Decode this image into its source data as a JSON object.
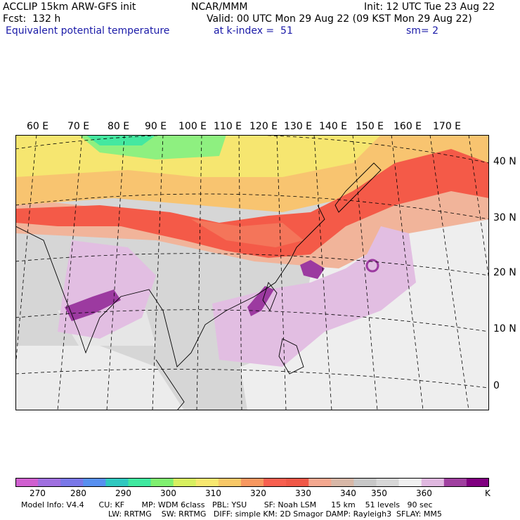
{
  "header": {
    "title": "ACCLIP 15km ARW-GFS init",
    "center": "NCAR/MMM",
    "init": "Init: 12 UTC Tue 23 Aug 22",
    "fcst": "Fcst:  132 h",
    "valid": "Valid: 00 UTC Mon 29 Aug 22 (09 KST Mon 29 Aug 22)",
    "field": "Equivalent potential temperature",
    "level": "at k-index =  51",
    "smooth": "sm= 2"
  },
  "map": {
    "lon_labels": [
      "60 E",
      "70 E",
      "80 E",
      "90 E",
      "100 E",
      "110 E",
      "120 E",
      "130 E",
      "140 E",
      "150 E",
      "160 E",
      "170 E"
    ],
    "lat_labels": [
      "40 N",
      "30 N",
      "20 N",
      "10 N",
      "0"
    ]
  },
  "colorbar": {
    "ticks": [
      "270",
      "280",
      "290",
      "300",
      "310",
      "320",
      "330",
      "340",
      "350",
      "360",
      "K"
    ],
    "colors": [
      "#d060d0",
      "#a070e0",
      "#7a78e8",
      "#5890f0",
      "#30c8c0",
      "#40e8a0",
      "#80f070",
      "#d8f060",
      "#f8e870",
      "#f8c868",
      "#f89860",
      "#f86050",
      "#f05848",
      "#f4a890",
      "#d8b8a8",
      "#c8c8c8",
      "#d8d8d8",
      "#f0f0f0",
      "#e0b8e0",
      "#a040a0",
      "#800080"
    ]
  },
  "footer": {
    "line1": "Model Info: V4.4      CU: KF       MP: WDM 6class   PBL: YSU       SF: Noah LSM      15 km    51 levels   90 sec",
    "line2": "LW: RRTMG    SW: RRTMG   DIFF: simple KM: 2D Smagor DAMP: Rayleigh3  SFLAY: MM5"
  }
}
